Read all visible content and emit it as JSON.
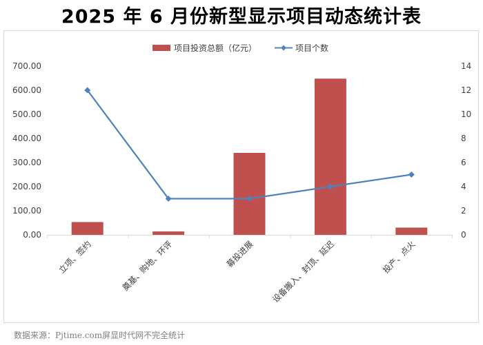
{
  "page": {
    "title": "2025 年 6 月份新型显示项目动态统计表",
    "source": "数据来源：Pjtime.com屏显时代网不完全统计"
  },
  "chart_data": {
    "type": "bar+line",
    "categories": [
      "立项、签约",
      "奠基、购地、环评",
      "募投进展",
      "设备搬入、封顶、延迟",
      "投产、点火"
    ],
    "series": [
      {
        "name": "项目投资总额（亿元）",
        "type": "bar",
        "axis": "left",
        "color": "#c0504d",
        "values": [
          53,
          14,
          340,
          648,
          30
        ]
      },
      {
        "name": "项目个数",
        "type": "line",
        "axis": "right",
        "color": "#4f81bd",
        "values": [
          12,
          3,
          3,
          4,
          5
        ]
      }
    ],
    "left_axis": {
      "min": 0,
      "max": 700,
      "step": 100,
      "ticks": [
        "0.00",
        "100.00",
        "200.00",
        "300.00",
        "400.00",
        "500.00",
        "600.00",
        "700.00"
      ]
    },
    "right_axis": {
      "min": 0,
      "max": 14,
      "step": 2,
      "ticks": [
        "0",
        "2",
        "4",
        "6",
        "8",
        "10",
        "12",
        "14"
      ]
    },
    "legend_position": "top-center",
    "grid": false
  }
}
